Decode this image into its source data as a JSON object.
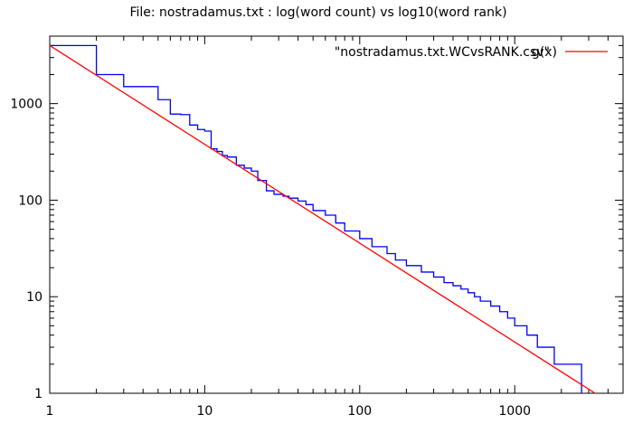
{
  "chart_data": {
    "type": "line",
    "title": "File: nostradamus.txt : log(word count) vs log10(word rank)",
    "xscale": "log",
    "yscale": "log",
    "xlim": [
      1,
      5000
    ],
    "ylim": [
      1,
      5000
    ],
    "x_ticks": [
      1,
      10,
      100,
      1000
    ],
    "y_ticks": [
      1,
      10,
      100,
      1000
    ],
    "x_tick_labels": [
      "1",
      "10",
      "100",
      "1000"
    ],
    "y_tick_labels": [
      "1",
      "10",
      "100",
      "1000"
    ],
    "grid": false,
    "legend_position": "top-right",
    "series": [
      {
        "name": "\"nostradamus.txt.WCvsRANK.csv\"",
        "color": "#0000ff",
        "style": "steps",
        "x": [
          1,
          2,
          3,
          5,
          6,
          7,
          8,
          9,
          10,
          11,
          12,
          13,
          14,
          16,
          18,
          20,
          22,
          25,
          28,
          32,
          35,
          40,
          45,
          50,
          60,
          70,
          80,
          100,
          120,
          150,
          170,
          200,
          250,
          300,
          350,
          400,
          450,
          500,
          550,
          600,
          700,
          800,
          900,
          1000,
          1200,
          1400,
          1800,
          2700,
          2700
        ],
        "y": [
          4000,
          2000,
          1500,
          1100,
          780,
          770,
          600,
          540,
          520,
          340,
          320,
          290,
          280,
          230,
          215,
          200,
          160,
          125,
          115,
          110,
          105,
          98,
          90,
          78,
          70,
          58,
          48,
          40,
          33,
          28,
          24,
          21,
          18,
          16,
          14,
          13,
          12,
          11,
          10,
          9,
          8,
          7,
          6,
          5,
          4,
          3,
          2,
          2,
          1
        ]
      },
      {
        "name": "g(x)",
        "color": "#ff0000",
        "style": "line",
        "x": [
          1,
          3300
        ],
        "y": [
          4000,
          1
        ]
      }
    ]
  }
}
